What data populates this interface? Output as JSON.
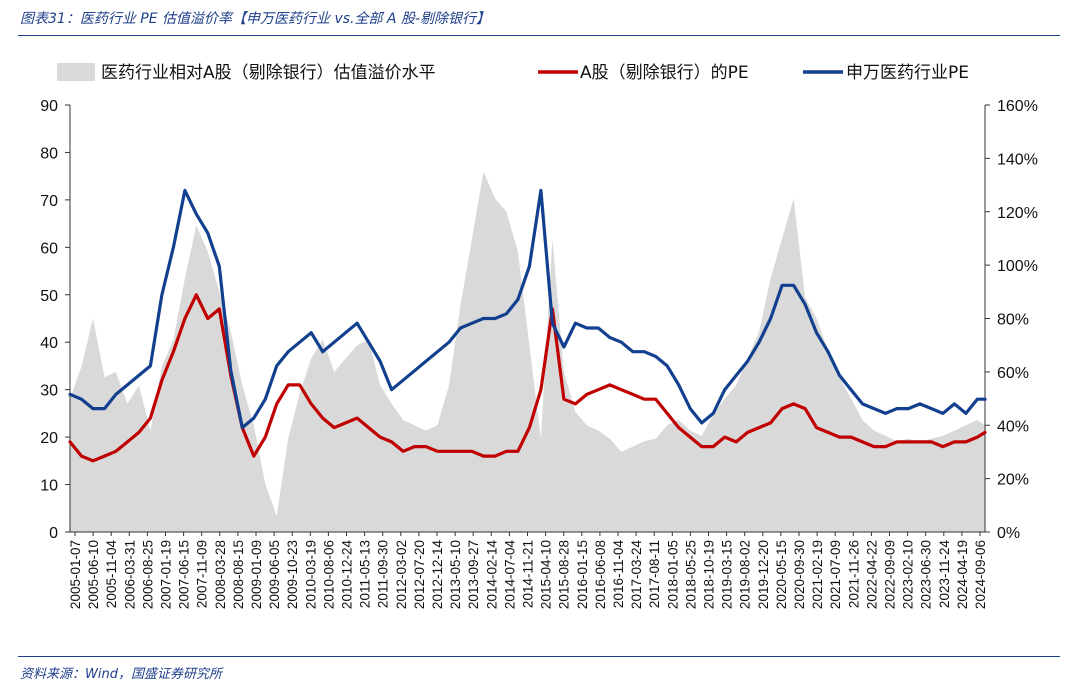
{
  "header": {
    "title": "图表31：医药行业 PE 估值溢价率【申万医药行业 vs.全部 A 股-剔除银行】"
  },
  "footer": {
    "source": "资料来源：Wind，国盛证券研究所"
  },
  "colors": {
    "premium_fill": "#d9d9d9",
    "a_share_pe": "#c00000",
    "pharma_pe": "#12408f",
    "rule": "#1f3f8a"
  },
  "chart_data": {
    "type": "line",
    "legend_position": "top",
    "grid": false,
    "y_left": {
      "min": 0,
      "max": 90,
      "ticks": [
        "0",
        "10",
        "20",
        "30",
        "40",
        "50",
        "60",
        "70",
        "80",
        "90"
      ]
    },
    "y_right": {
      "min": 0,
      "max": 160,
      "unit": "%",
      "ticks": [
        "0%",
        "20%",
        "40%",
        "60%",
        "80%",
        "100%",
        "120%",
        "140%",
        "160%"
      ]
    },
    "x_tick_labels": [
      "2005-01-07",
      "2005-06-10",
      "2005-11-04",
      "2006-03-31",
      "2006-08-25",
      "2007-01-19",
      "2007-06-15",
      "2007-11-09",
      "2008-03-28",
      "2008-08-15",
      "2009-01-09",
      "2009-06-05",
      "2009-10-23",
      "2010-03-19",
      "2010-08-06",
      "2010-12-24",
      "2011-05-13",
      "2011-09-30",
      "2012-03-02",
      "2012-07-20",
      "2012-12-14",
      "2013-05-10",
      "2013-09-27",
      "2014-02-14",
      "2014-07-04",
      "2014-11-21",
      "2015-04-10",
      "2015-08-28",
      "2016-01-15",
      "2016-06-08",
      "2016-11-04",
      "2017-03-24",
      "2017-08-11",
      "2018-01-05",
      "2018-05-25",
      "2018-10-19",
      "2019-03-15",
      "2019-08-02",
      "2019-12-20",
      "2020-05-15",
      "2020-09-30",
      "2021-02-19",
      "2021-07-09",
      "2021-11-26",
      "2022-04-22",
      "2022-09-09",
      "2023-02-10",
      "2023-06-30",
      "2023-11-24",
      "2024-04-19",
      "2024-09-06"
    ],
    "x": [
      "2005-01",
      "2005-04",
      "2005-07",
      "2005-10",
      "2006-01",
      "2006-04",
      "2006-07",
      "2006-10",
      "2007-01",
      "2007-04",
      "2007-07",
      "2007-10",
      "2008-01",
      "2008-04",
      "2008-07",
      "2008-10",
      "2009-01",
      "2009-04",
      "2009-07",
      "2009-10",
      "2010-01",
      "2010-04",
      "2010-07",
      "2010-10",
      "2011-01",
      "2011-04",
      "2011-07",
      "2011-10",
      "2012-01",
      "2012-04",
      "2012-07",
      "2012-10",
      "2013-01",
      "2013-04",
      "2013-07",
      "2013-10",
      "2014-01",
      "2014-04",
      "2014-07",
      "2014-10",
      "2015-01",
      "2015-04",
      "2015-07",
      "2015-10",
      "2016-01",
      "2016-04",
      "2016-07",
      "2016-10",
      "2017-01",
      "2017-04",
      "2017-07",
      "2017-10",
      "2018-01",
      "2018-04",
      "2018-07",
      "2018-10",
      "2019-01",
      "2019-04",
      "2019-07",
      "2019-10",
      "2020-01",
      "2020-04",
      "2020-07",
      "2020-10",
      "2021-01",
      "2021-04",
      "2021-07",
      "2021-10",
      "2022-01",
      "2022-04",
      "2022-07",
      "2022-10",
      "2023-01",
      "2023-04",
      "2023-07",
      "2023-10",
      "2024-01",
      "2024-04",
      "2024-07",
      "2024-10",
      "2024-12"
    ],
    "series": [
      {
        "name": "医药行业相对A股（剔除银行）估值溢价水平",
        "style": "area",
        "axis": "right",
        "values": [
          50,
          62,
          80,
          58,
          60,
          48,
          55,
          38,
          62,
          72,
          95,
          115,
          105,
          90,
          75,
          55,
          40,
          18,
          6,
          35,
          52,
          65,
          72,
          60,
          65,
          70,
          72,
          55,
          48,
          42,
          40,
          38,
          40,
          55,
          85,
          110,
          135,
          125,
          120,
          105,
          70,
          35,
          110,
          60,
          45,
          40,
          38,
          35,
          30,
          32,
          34,
          35,
          40,
          42,
          38,
          36,
          44,
          50,
          55,
          65,
          75,
          95,
          110,
          125,
          88,
          80,
          68,
          58,
          50,
          42,
          38,
          36,
          34,
          35,
          34,
          35,
          36,
          38,
          40,
          42,
          40
        ]
      },
      {
        "name": "A股（剔除银行）的PE",
        "style": "line",
        "axis": "left",
        "values": [
          19,
          16,
          15,
          16,
          17,
          19,
          21,
          24,
          32,
          38,
          45,
          50,
          45,
          47,
          33,
          22,
          16,
          20,
          27,
          31,
          31,
          27,
          24,
          22,
          23,
          24,
          22,
          20,
          19,
          17,
          18,
          18,
          17,
          17,
          17,
          17,
          16,
          16,
          17,
          17,
          22,
          30,
          47,
          28,
          27,
          29,
          30,
          31,
          30,
          29,
          28,
          28,
          25,
          22,
          20,
          18,
          18,
          20,
          19,
          21,
          22,
          23,
          26,
          27,
          26,
          22,
          21,
          20,
          20,
          19,
          18,
          18,
          19,
          19,
          19,
          19,
          18,
          19,
          19,
          20,
          21
        ]
      },
      {
        "name": "申万医药行业PE",
        "style": "line",
        "axis": "left",
        "values": [
          29,
          28,
          26,
          26,
          29,
          31,
          33,
          35,
          50,
          60,
          72,
          67,
          63,
          56,
          34,
          22,
          24,
          28,
          35,
          38,
          40,
          42,
          38,
          40,
          42,
          44,
          40,
          36,
          30,
          32,
          34,
          36,
          38,
          40,
          43,
          44,
          45,
          45,
          46,
          49,
          56,
          72,
          44,
          39,
          44,
          43,
          43,
          41,
          40,
          38,
          38,
          37,
          35,
          31,
          26,
          23,
          25,
          30,
          33,
          36,
          40,
          45,
          52,
          52,
          48,
          42,
          38,
          33,
          30,
          27,
          26,
          25,
          26,
          26,
          27,
          26,
          25,
          27,
          25,
          28,
          28
        ]
      }
    ]
  }
}
